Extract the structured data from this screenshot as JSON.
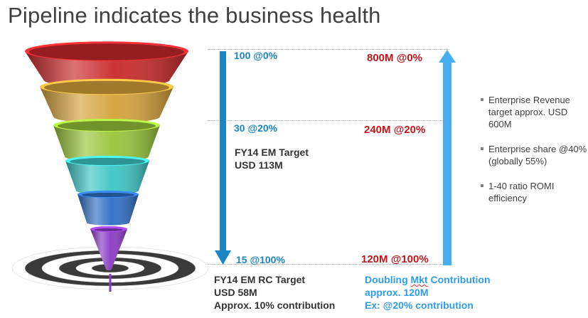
{
  "title": "Pipeline indicates the business health",
  "funnel": {
    "tiers": [
      {
        "name": "tier-1",
        "color": "#c8282a"
      },
      {
        "name": "tier-2",
        "color": "#d4a23a"
      },
      {
        "name": "tier-3",
        "color": "#98c43a"
      },
      {
        "name": "tier-4",
        "color": "#3cc6c4"
      },
      {
        "name": "tier-5",
        "color": "#2f6fc4"
      },
      {
        "name": "tier-6",
        "color": "#8a3ac4"
      }
    ],
    "target_colors": [
      "#3a3a3a",
      "#ffffff"
    ]
  },
  "left_scale": {
    "top": "100 @0%",
    "mid": "30 @20%",
    "bottom": "15 @100%",
    "arrow_color": "#1a86c4",
    "target_line1": "FY14 EM Target",
    "target_line2": "USD 113M"
  },
  "right_scale": {
    "top": "800M @0%",
    "mid": "240M @20%",
    "bottom": "120M @100%",
    "arrow_color": "#47aef0"
  },
  "bottom_left": {
    "line1": "FY14 EM RC Target",
    "line2": "USD 58M",
    "line3": "Approx. 10% contribution"
  },
  "bottom_right": {
    "line1_a": "Doubling ",
    "line1_b": "Mkt",
    "line1_c": " Contribution",
    "line2": "approx. 120M",
    "line3": "Ex: @20% contribution"
  },
  "bullets": [
    "Enterprise Revenue target approx. USD 600M",
    "Enterprise share @40% (globally 55%)",
    "1-40 ratio ROMI efficiency"
  ]
}
